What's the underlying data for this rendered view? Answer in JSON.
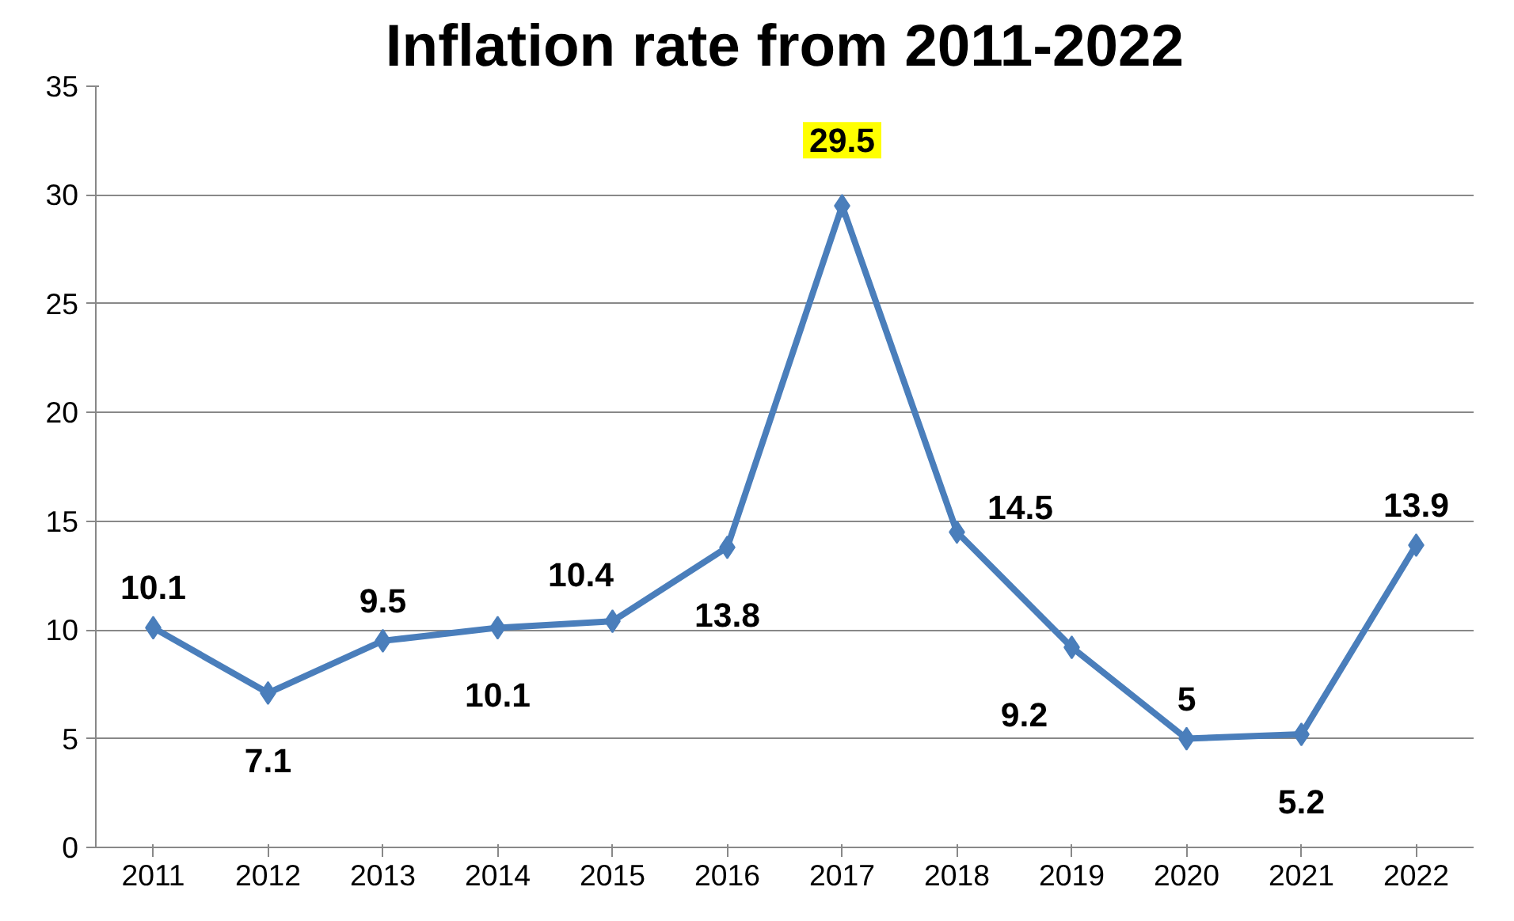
{
  "chart_data": {
    "type": "line",
    "title": "Inflation rate from 2011-2022",
    "categories": [
      "2011",
      "2012",
      "2013",
      "2014",
      "2015",
      "2016",
      "2017",
      "2018",
      "2019",
      "2020",
      "2021",
      "2022"
    ],
    "values": [
      10.1,
      7.1,
      9.5,
      10.1,
      10.4,
      13.8,
      29.5,
      14.5,
      9.2,
      5,
      5.2,
      13.9
    ],
    "color": "#4a7ebb",
    "marker": "diamond",
    "line_style": "solid",
    "data_labels": true,
    "ylim": [
      0,
      35
    ],
    "yticks": [
      0,
      5,
      10,
      15,
      20,
      25,
      30,
      35
    ],
    "grid": "y"
  }
}
